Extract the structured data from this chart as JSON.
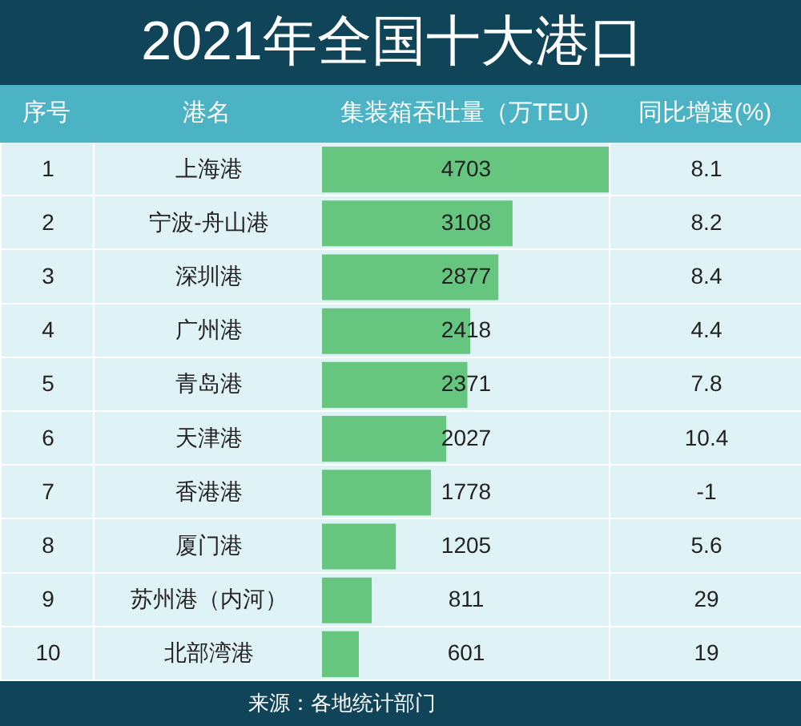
{
  "chart_data": [
    {
      "type": "other",
      "xlabel": "序号",
      "values": [
        1,
        2,
        3,
        4,
        5,
        6,
        7,
        8,
        9,
        10
      ],
      "data_labels": true
    },
    {
      "type": "bar",
      "orientation": "horizontal",
      "title": "2021年全国十大港口",
      "ylabel": "港名",
      "xlabel": "集装箱吞吐量（万TEU)",
      "categories": [
        "上海港",
        "宁波-舟山港",
        "深圳港",
        "广州港",
        "青岛港",
        "天津港",
        "香港港",
        "厦门港",
        "苏州港（内河）",
        "北部湾港"
      ],
      "values": [
        4703,
        3108,
        2877,
        2418,
        2371,
        2027,
        1778,
        1205,
        811,
        601
      ],
      "color": "#66c57f",
      "data_labels": true,
      "annotations": [
        "来源：各地统计部门"
      ]
    },
    {
      "type": "other",
      "xlabel": "同比增速(%)",
      "values": [
        8.1,
        8.2,
        8.4,
        4.4,
        7.8,
        10.4,
        -1,
        5.6,
        29,
        19
      ],
      "data_labels": true
    }
  ]
}
